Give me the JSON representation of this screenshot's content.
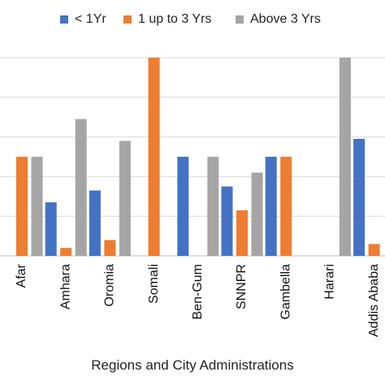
{
  "chart_data": {
    "type": "bar",
    "title": "",
    "xlabel": "Regions and City Administrations",
    "ylabel": "",
    "ylim": [
      0,
      100
    ],
    "grid": true,
    "legend_position": "top",
    "categories": [
      "Afar",
      "Amhara",
      "Oromia",
      "Somali",
      "Ben-Gum",
      "SNNPR",
      "Gambella",
      "Harari",
      "Addis Ababa"
    ],
    "series": [
      {
        "name": "< 1Yr",
        "color": "#4472C4",
        "values": [
          0,
          27,
          33,
          0,
          50,
          35,
          50,
          0,
          59
        ]
      },
      {
        "name": "1 up to 3 Yrs",
        "color": "#ED7D31",
        "values": [
          50,
          4,
          8,
          100,
          0,
          23,
          50,
          0,
          6
        ]
      },
      {
        "name": "Above 3 Yrs",
        "color": "#A5A5A5",
        "values": [
          50,
          69,
          58,
          0,
          50,
          42,
          0,
          100,
          0
        ]
      }
    ]
  }
}
